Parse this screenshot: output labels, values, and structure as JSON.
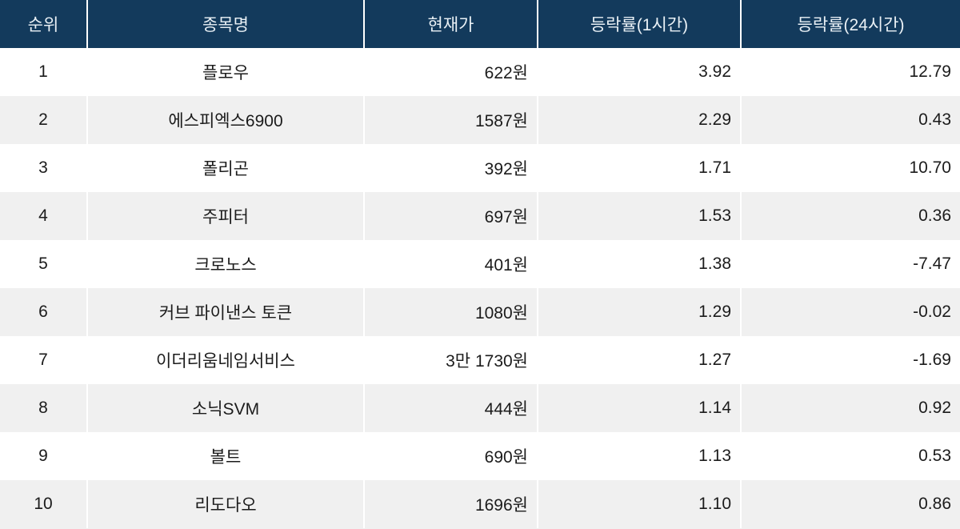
{
  "colors": {
    "header_bg": "#133a5c",
    "header_text": "#eaf1f6",
    "row_bg": "#ffffff",
    "row_alt_bg": "#f0f0f0",
    "body_text": "#1b1b1b",
    "separator": "#ffffff"
  },
  "table": {
    "columns": [
      {
        "label": "순위"
      },
      {
        "label": "종목명"
      },
      {
        "label": "현재가"
      },
      {
        "label": "등락률(1시간)"
      },
      {
        "label": "등락률(24시간)"
      }
    ],
    "rows": [
      {
        "rank": "1",
        "name": "플로우",
        "price": "622원",
        "change_1h": "3.92",
        "change_24h": "12.79"
      },
      {
        "rank": "2",
        "name": "에스피엑스6900",
        "price": "1587원",
        "change_1h": "2.29",
        "change_24h": "0.43"
      },
      {
        "rank": "3",
        "name": "폴리곤",
        "price": "392원",
        "change_1h": "1.71",
        "change_24h": "10.70"
      },
      {
        "rank": "4",
        "name": "주피터",
        "price": "697원",
        "change_1h": "1.53",
        "change_24h": "0.36"
      },
      {
        "rank": "5",
        "name": "크로노스",
        "price": "401원",
        "change_1h": "1.38",
        "change_24h": "-7.47"
      },
      {
        "rank": "6",
        "name": "커브 파이낸스 토큰",
        "price": "1080원",
        "change_1h": "1.29",
        "change_24h": "-0.02"
      },
      {
        "rank": "7",
        "name": "이더리움네임서비스",
        "price": "3만 1730원",
        "change_1h": "1.27",
        "change_24h": "-1.69"
      },
      {
        "rank": "8",
        "name": "소닉SVM",
        "price": "444원",
        "change_1h": "1.14",
        "change_24h": "0.92"
      },
      {
        "rank": "9",
        "name": "볼트",
        "price": "690원",
        "change_1h": "1.13",
        "change_24h": "0.53"
      },
      {
        "rank": "10",
        "name": "리도다오",
        "price": "1696원",
        "change_1h": "1.10",
        "change_24h": "0.86"
      }
    ]
  },
  "chart_data": {
    "type": "table",
    "columns": [
      "순위",
      "종목명",
      "현재가",
      "등락률(1시간)",
      "등락률(24시간)"
    ],
    "rows": [
      [
        1,
        "플로우",
        "622원",
        3.92,
        12.79
      ],
      [
        2,
        "에스피엑스6900",
        "1587원",
        2.29,
        0.43
      ],
      [
        3,
        "폴리곤",
        "392원",
        1.71,
        10.7
      ],
      [
        4,
        "주피터",
        "697원",
        1.53,
        0.36
      ],
      [
        5,
        "크로노스",
        "401원",
        1.38,
        -7.47
      ],
      [
        6,
        "커브 파이낸스 토큰",
        "1080원",
        1.29,
        -0.02
      ],
      [
        7,
        "이더리움네임서비스",
        "3만 1730원",
        1.27,
        -1.69
      ],
      [
        8,
        "소닉SVM",
        "444원",
        1.14,
        0.92
      ],
      [
        9,
        "볼트",
        "690원",
        1.13,
        0.53
      ],
      [
        10,
        "리도다오",
        "1696원",
        1.1,
        0.86
      ]
    ]
  }
}
